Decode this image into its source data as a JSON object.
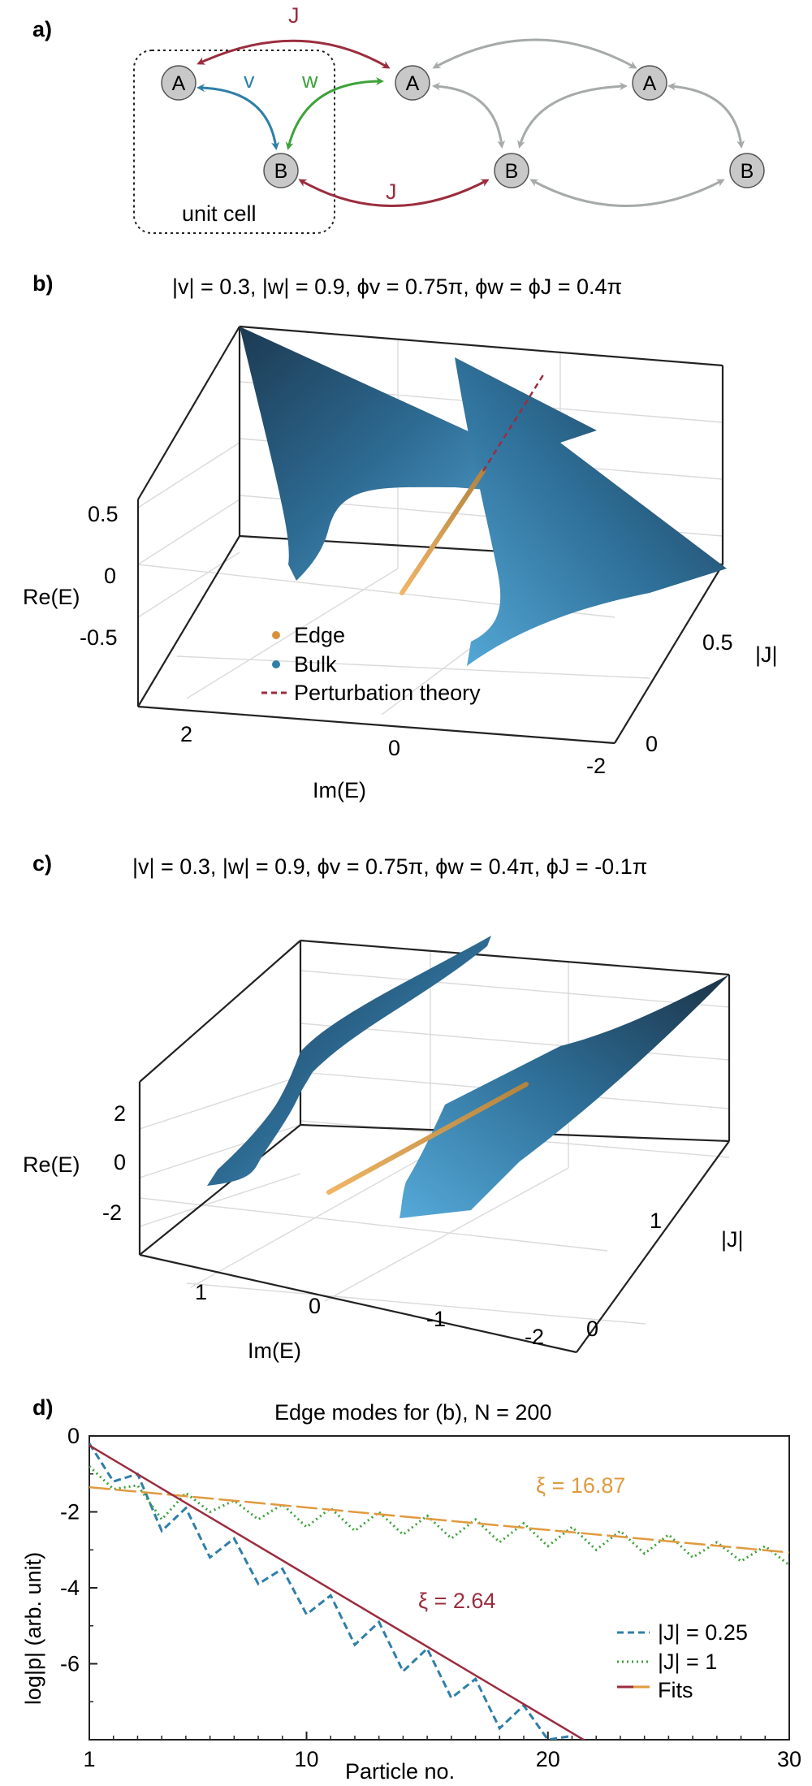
{
  "panel_a": {
    "label": "a)",
    "nodes": {
      "A": "A",
      "B": "B"
    },
    "hoppings": {
      "J": "J",
      "v": "v",
      "w": "w"
    },
    "unit_cell": "unit cell",
    "colors": {
      "J": "#9b2d3e",
      "v": "#2f7fa8",
      "w": "#3ea23a",
      "gray": "#a6aaaa",
      "node": "#c8c8c8"
    }
  },
  "panel_b": {
    "label": "b)",
    "title": "|v| = 0.3, |w| = 0.9, ϕv = 0.75π, ϕw = ϕJ = 0.4π",
    "zlabel": "Re(E)",
    "xlabel": "Im(E)",
    "ylabel": "|J|",
    "zticks": [
      "0.5",
      "0",
      "-0.5"
    ],
    "xticks": [
      "2",
      "0",
      "-2"
    ],
    "yticks": [
      "0.5",
      "0"
    ],
    "legend": [
      "Edge",
      "Bulk",
      "Perturbation theory"
    ]
  },
  "panel_c": {
    "label": "c)",
    "title": "|v| = 0.3, |w| = 0.9, ϕv = 0.75π, ϕw = 0.4π, ϕJ = -0.1π",
    "zlabel": "Re(E)",
    "xlabel": "Im(E)",
    "ylabel": "|J|",
    "zticks": [
      "2",
      "0",
      "-2"
    ],
    "xticks": [
      "1",
      "0",
      "-1",
      "-2"
    ],
    "yticks": [
      "1",
      "0"
    ]
  },
  "chart_data": {
    "type": "line",
    "title": "Edge modes for (b), N = 200",
    "xlabel": "Particle no.",
    "ylabel": "log|p| (arb. unit)",
    "xlim": [
      1,
      30
    ],
    "ylim": [
      -8,
      0
    ],
    "xticks": [
      "1",
      "10",
      "20",
      "30"
    ],
    "yticks": [
      "0",
      "-2",
      "-4",
      "-6"
    ],
    "legend": [
      "|J| = 0.25",
      "|J| = 1",
      "Fits"
    ],
    "annotations": [
      "ξ = 16.87",
      "ξ = 2.64"
    ],
    "colors": {
      "j025": "#2f7fa8",
      "j1": "#3ea23a",
      "fit_red": "#9b2d3e",
      "fit_orange": "#e09a3f"
    },
    "series": [
      {
        "name": "|J| = 0.25",
        "x": [
          1,
          2,
          3,
          4,
          5,
          6,
          7,
          8,
          9,
          10,
          11,
          12,
          13,
          14,
          15,
          16,
          17,
          18,
          19,
          20,
          21
        ],
        "y": [
          -0.2,
          -1.2,
          -1.0,
          -2.5,
          -1.9,
          -3.2,
          -2.7,
          -3.9,
          -3.5,
          -4.7,
          -4.2,
          -5.5,
          -4.9,
          -6.2,
          -5.6,
          -6.9,
          -6.4,
          -7.7,
          -7.1,
          -8.0,
          -7.9
        ]
      },
      {
        "name": "|J| = 1",
        "x": [
          1,
          2,
          3,
          4,
          5,
          6,
          7,
          8,
          9,
          10,
          11,
          12,
          13,
          14,
          15,
          16,
          17,
          18,
          19,
          20,
          21,
          22,
          23,
          24,
          25,
          26,
          27,
          28,
          29,
          30
        ],
        "y": [
          -0.8,
          -1.4,
          -1.3,
          -2.2,
          -1.5,
          -2.0,
          -1.7,
          -2.2,
          -1.8,
          -2.4,
          -1.9,
          -2.5,
          -2.0,
          -2.6,
          -2.1,
          -2.7,
          -2.2,
          -2.8,
          -2.3,
          -2.9,
          -2.4,
          -3.0,
          -2.5,
          -3.1,
          -2.6,
          -3.2,
          -2.8,
          -3.3,
          -2.9,
          -3.4
        ]
      },
      {
        "name": "Fits ξ = 16.87",
        "x": [
          1,
          30
        ],
        "y": [
          -1.35,
          -3.07
        ]
      },
      {
        "name": "Fits ξ = 2.64",
        "x": [
          1,
          22
        ],
        "y": [
          -0.25,
          -8.2
        ]
      }
    ]
  }
}
